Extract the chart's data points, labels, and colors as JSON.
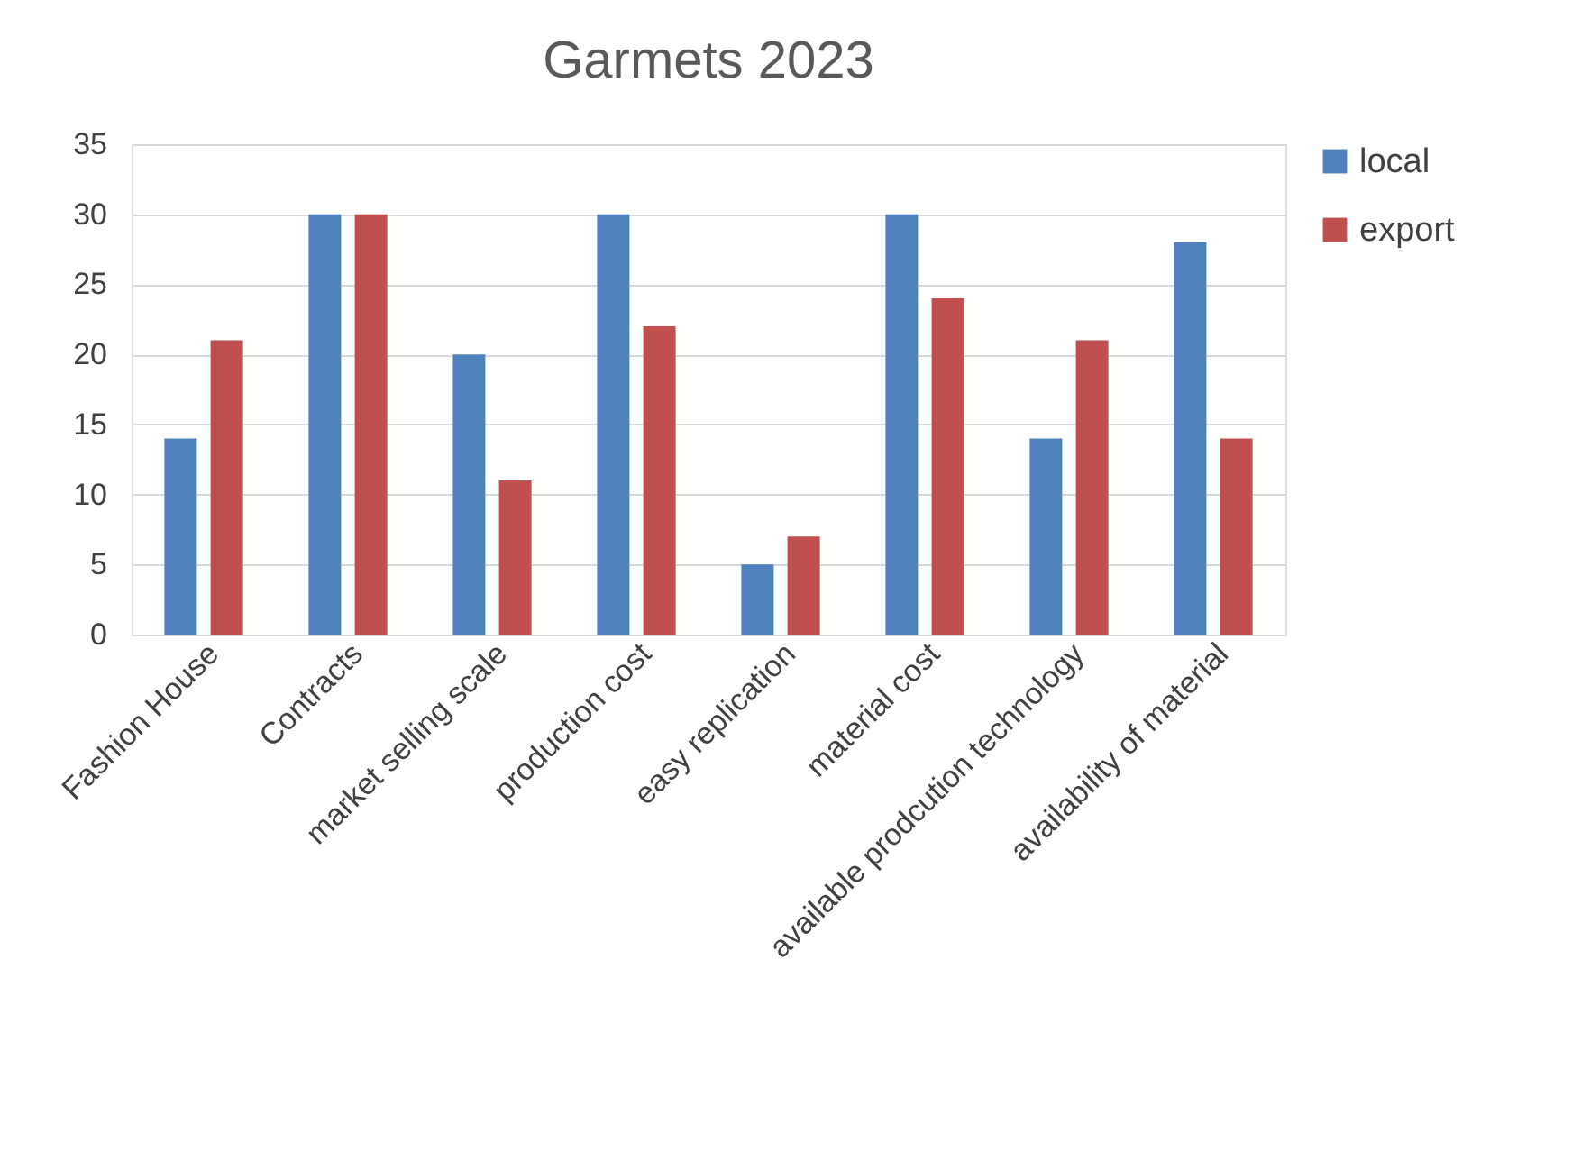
{
  "chart_data": {
    "type": "bar",
    "title": "Garmets 2023",
    "categories": [
      "Fashion House",
      "Contracts",
      "market selling scale",
      "production cost",
      "easy replication",
      "material cost",
      "available prodcution technology",
      "availability of material"
    ],
    "series": [
      {
        "name": "local",
        "color": "#4f81bd",
        "values": [
          14,
          30,
          20,
          30,
          5,
          30,
          14,
          28
        ]
      },
      {
        "name": "export",
        "color": "#c0504d",
        "values": [
          21,
          30,
          11,
          22,
          7,
          24,
          21,
          14
        ]
      }
    ],
    "ylim": [
      0,
      35
    ],
    "yticks": [
      0,
      5,
      10,
      15,
      20,
      25,
      30,
      35
    ],
    "grid": "y",
    "legend": "right"
  }
}
